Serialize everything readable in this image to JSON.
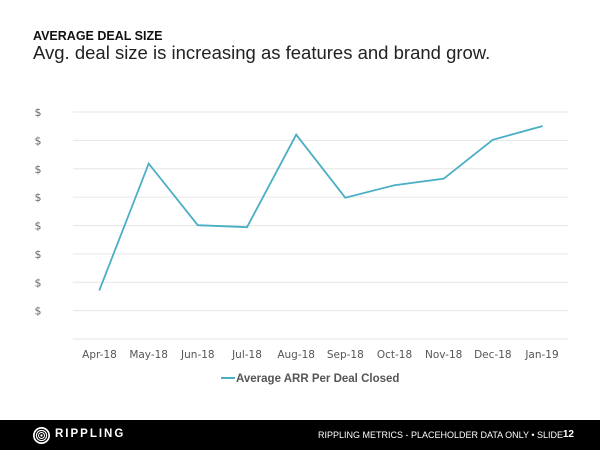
{
  "header": {
    "kicker": "AVERAGE DEAL SIZE",
    "headline": "Avg. deal size is increasing as features and brand grow."
  },
  "chart_data": {
    "type": "line",
    "title": "",
    "xlabel": "",
    "ylabel": "",
    "categories": [
      "Apr-18",
      "May-18",
      "Jun-18",
      "Jul-18",
      "Aug-18",
      "Sep-18",
      "Oct-18",
      "Nov-18",
      "Dec-18",
      "Jan-19"
    ],
    "y_tick_labels": [
      "$",
      "$",
      "$",
      "$",
      "$",
      "$",
      "$",
      "$"
    ],
    "ylim": [
      0,
      8
    ],
    "grid": true,
    "legend_position": "bottom",
    "series": [
      {
        "name": "Average ARR Per Deal Closed",
        "color": "#4AAFC4",
        "values": [
          1.73,
          6.18,
          4.01,
          3.94,
          7.2,
          4.98,
          5.42,
          5.65,
          7.02,
          7.5
        ]
      }
    ]
  },
  "footer": {
    "brand": "RIPPLING",
    "text": "RIPPLING METRICS - PLACEHOLDER DATA ONLY  •  SLIDE",
    "slide_number": "12"
  }
}
